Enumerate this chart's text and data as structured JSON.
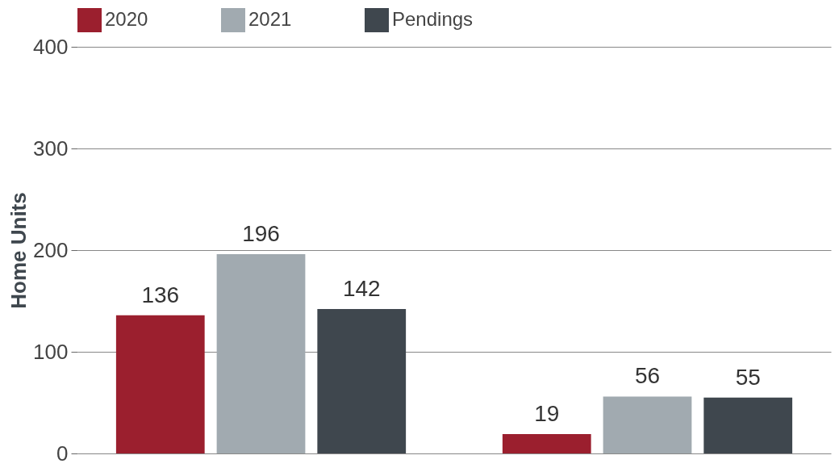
{
  "chart_data": {
    "type": "bar",
    "ylabel": "Home Units",
    "categories": [
      null,
      null
    ],
    "series": [
      {
        "name": "2020",
        "color": "#9b1f2e",
        "values": [
          136,
          19
        ]
      },
      {
        "name": "2021",
        "color": "#a1aab0",
        "values": [
          196,
          56
        ]
      },
      {
        "name": "Pendings",
        "color": "#3f474e",
        "values": [
          142,
          55
        ]
      }
    ],
    "ylim": [
      0,
      400
    ],
    "yticks": [
      0,
      100,
      200,
      300,
      400
    ],
    "grid": "y",
    "legend": "top",
    "tick_labels": "y",
    "data_labels": true
  }
}
